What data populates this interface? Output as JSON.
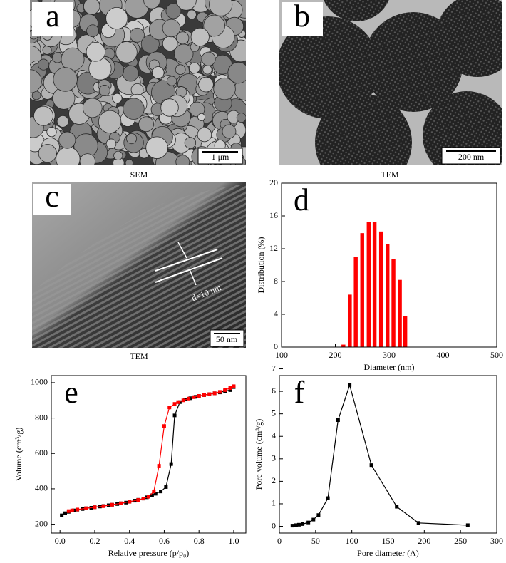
{
  "images": [
    {
      "label": "a",
      "scale": "1 μm",
      "caption": "SEM"
    },
    {
      "label": "b",
      "scale": "200 nm",
      "caption": "TEM"
    },
    {
      "label": "c",
      "scale": "50 nm",
      "caption": "TEM",
      "annotation": "d=10 nm"
    }
  ],
  "chart_data": [
    {
      "type": "bar",
      "label": "d",
      "xlabel": "Diameter (nm)",
      "ylabel": "Distribution (%)",
      "color": "#ff0000",
      "x": [
        215,
        227,
        238,
        250,
        262,
        273,
        285,
        297,
        308,
        320,
        330
      ],
      "values": [
        0.3,
        6.4,
        11,
        13.9,
        15.3,
        15.3,
        14.1,
        12.6,
        10.7,
        8.2,
        3.8
      ],
      "xlim": [
        100,
        500
      ],
      "xticks": [
        100,
        200,
        300,
        400,
        500
      ],
      "ylim": [
        0,
        20
      ],
      "yticks": [
        0,
        4,
        8,
        12,
        16,
        20
      ]
    },
    {
      "type": "line",
      "label": "e",
      "xlabel": "Relative pressure (p/p₀)",
      "ylabel": "Volume (cm³/g)",
      "series": [
        {
          "color": "#000000",
          "x": [
            0.01,
            0.03,
            0.05,
            0.08,
            0.1,
            0.13,
            0.15,
            0.18,
            0.2,
            0.23,
            0.25,
            0.28,
            0.3,
            0.33,
            0.35,
            0.38,
            0.4,
            0.43,
            0.45,
            0.48,
            0.5,
            0.53,
            0.55,
            0.58,
            0.61,
            0.64,
            0.66,
            0.69,
            0.72,
            0.75,
            0.78,
            0.8,
            0.83,
            0.86,
            0.89,
            0.92,
            0.95,
            0.98,
            1.0
          ],
          "values": [
            250,
            262,
            270,
            278,
            282,
            286,
            290,
            293,
            296,
            300,
            303,
            307,
            310,
            314,
            318,
            322,
            327,
            333,
            338,
            345,
            352,
            363,
            372,
            385,
            410,
            540,
            815,
            890,
            905,
            912,
            920,
            925,
            930,
            935,
            940,
            945,
            952,
            958,
            975
          ]
        },
        {
          "color": "#ff0000",
          "x": [
            1.0,
            0.98,
            0.95,
            0.92,
            0.89,
            0.86,
            0.83,
            0.8,
            0.77,
            0.74,
            0.71,
            0.68,
            0.66,
            0.63,
            0.6,
            0.57,
            0.54,
            0.51,
            0.48,
            0.45,
            0.4,
            0.35,
            0.3,
            0.25,
            0.2,
            0.15,
            0.1,
            0.07,
            0.05
          ],
          "values": [
            980,
            970,
            958,
            948,
            940,
            935,
            930,
            925,
            918,
            910,
            900,
            890,
            880,
            860,
            755,
            530,
            385,
            355,
            345,
            337,
            327,
            318,
            310,
            302,
            296,
            290,
            283,
            278,
            274
          ]
        }
      ],
      "xlim": [
        -0.05,
        1.07
      ],
      "xticks": [
        {
          "value": 0,
          "label": "0.0"
        },
        0.2,
        0.4,
        0.6,
        0.8,
        {
          "value": 1,
          "label": "1.0"
        }
      ],
      "ylim": [
        150,
        1040
      ],
      "yticks": [
        200,
        400,
        600,
        800,
        1000
      ]
    },
    {
      "type": "line",
      "label": "f",
      "xlabel": "Pore diameter (A)",
      "ylabel": "Pore volume (cm³/g)",
      "series": [
        {
          "color": "#000000",
          "x": [
            18,
            23,
            27,
            32,
            40,
            47,
            54,
            67,
            81,
            97,
            127,
            162,
            192,
            260
          ],
          "values": [
            0.03,
            0.05,
            0.07,
            0.1,
            0.17,
            0.3,
            0.5,
            1.25,
            4.72,
            6.28,
            2.72,
            0.87,
            0.15,
            0.05
          ]
        }
      ],
      "xlim": [
        0,
        300
      ],
      "xticks": [
        0,
        50,
        100,
        150,
        200,
        250,
        300
      ],
      "ylim": [
        -0.3,
        6.7
      ],
      "yticks": [
        0,
        1,
        2,
        3,
        4,
        5,
        6,
        7
      ]
    }
  ]
}
